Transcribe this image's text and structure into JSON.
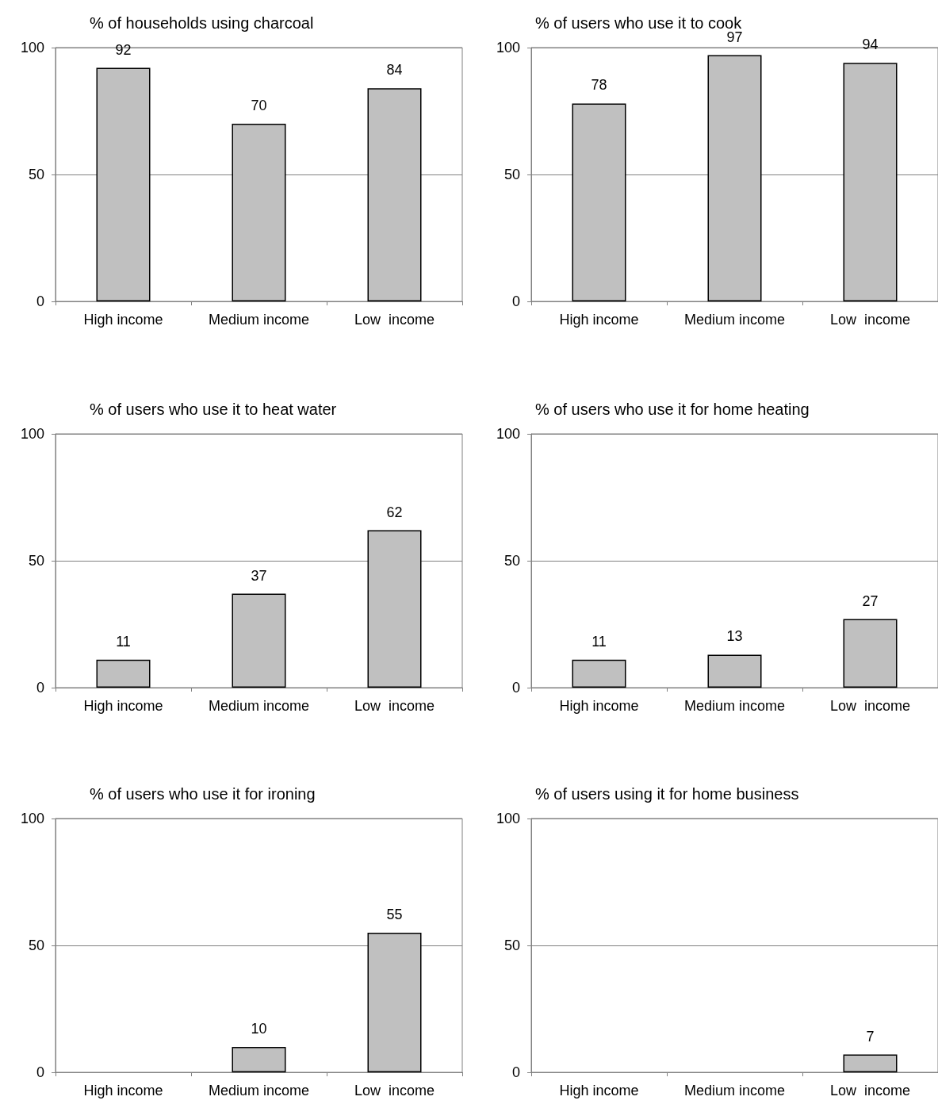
{
  "chart_data": [
    {
      "type": "bar",
      "title": "% of households using charcoal",
      "categories": [
        "High income",
        "Medium income",
        "Low  income"
      ],
      "values": [
        92,
        70,
        84
      ],
      "color": "#c0c0c0",
      "ylim": [
        0,
        100
      ],
      "yticks": [
        0,
        50,
        100
      ],
      "grid": "y",
      "data_labels": true
    },
    {
      "type": "bar",
      "title": "% of users who use it to cook",
      "categories": [
        "High income",
        "Medium income",
        "Low  income"
      ],
      "values": [
        78,
        97,
        94
      ],
      "color": "#c0c0c0",
      "ylim": [
        0,
        100
      ],
      "yticks": [
        0,
        50,
        100
      ],
      "grid": "y",
      "data_labels": true
    },
    {
      "type": "bar",
      "title": "% of users who use it to heat water",
      "categories": [
        "High income",
        "Medium income",
        "Low  income"
      ],
      "values": [
        11,
        37,
        62
      ],
      "color": "#c0c0c0",
      "ylim": [
        0,
        100
      ],
      "yticks": [
        0,
        50,
        100
      ],
      "grid": "y",
      "data_labels": true
    },
    {
      "type": "bar",
      "title": "% of users who use it for home heating",
      "categories": [
        "High income",
        "Medium income",
        "Low  income"
      ],
      "values": [
        11,
        13,
        27
      ],
      "color": "#c0c0c0",
      "ylim": [
        0,
        100
      ],
      "yticks": [
        0,
        50,
        100
      ],
      "grid": "y",
      "data_labels": true
    },
    {
      "type": "bar",
      "title": "% of users who use it for ironing",
      "categories": [
        "High income",
        "Medium income",
        "Low  income"
      ],
      "values": [
        null,
        10,
        55
      ],
      "color": "#c0c0c0",
      "ylim": [
        0,
        100
      ],
      "yticks": [
        0,
        50,
        100
      ],
      "grid": "y",
      "data_labels": true
    },
    {
      "type": "bar",
      "title": "% of users using it for home business",
      "categories": [
        "High income",
        "Medium income",
        "Low  income"
      ],
      "values": [
        null,
        null,
        7
      ],
      "color": "#c0c0c0",
      "ylim": [
        0,
        100
      ],
      "yticks": [
        0,
        50,
        100
      ],
      "grid": "y",
      "data_labels": true
    }
  ]
}
